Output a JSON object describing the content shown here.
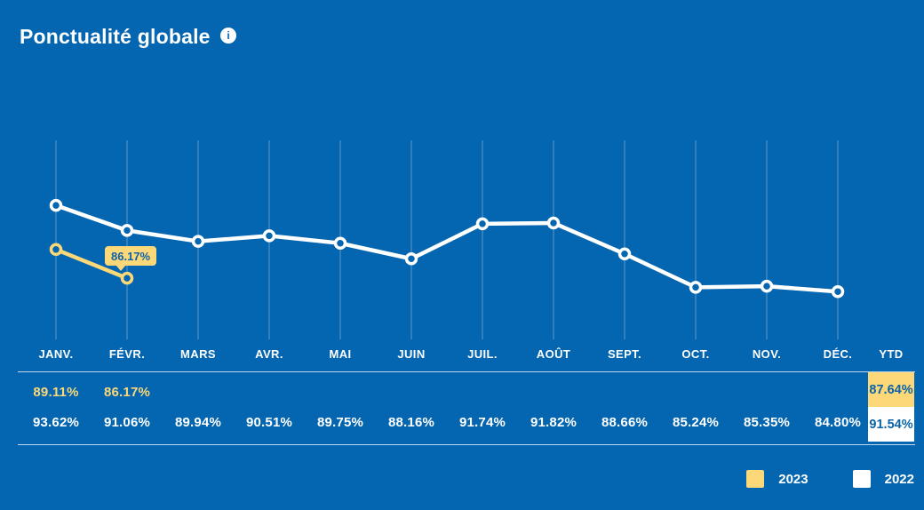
{
  "header": {
    "title": "Ponctualité globale",
    "info_icon": "i"
  },
  "colors": {
    "background": "#0466b0",
    "series_2023": "#fcd878",
    "series_2022": "#ffffff",
    "value_text_on_cell": "#0b63a8",
    "gridline": "rgba(255,255,255,0.35)",
    "separator": "rgba(255,255,255,0.75)"
  },
  "chart_data": {
    "type": "line",
    "title": "Ponctualité globale",
    "categories": [
      "JANV.",
      "FÉVR.",
      "MARS",
      "AVR.",
      "MAI",
      "JUIN",
      "JUIL.",
      "AOÛT",
      "SEPT.",
      "OCT.",
      "NOV.",
      "DÉC."
    ],
    "series": [
      {
        "name": "2022",
        "color": "#ffffff",
        "values": [
          93.62,
          91.06,
          89.94,
          90.51,
          89.75,
          88.16,
          91.74,
          91.82,
          88.66,
          85.24,
          85.35,
          84.8
        ]
      },
      {
        "name": "2023",
        "color": "#fcd878",
        "values": [
          89.11,
          86.17,
          null,
          null,
          null,
          null,
          null,
          null,
          null,
          null,
          null,
          null
        ]
      }
    ],
    "ylim": [
      84,
      95
    ],
    "grid": "vertical-only",
    "legend_position": "bottom-right",
    "tooltip": {
      "series": "2023",
      "index": 1,
      "label": "86.17%"
    }
  },
  "table": {
    "headers": [
      "JANV.",
      "FÉVR.",
      "MARS",
      "AVR.",
      "MAI",
      "JUIN",
      "JUIL.",
      "AOÛT",
      "SEPT.",
      "OCT.",
      "NOV.",
      "DÉC.",
      "YTD"
    ],
    "rows": [
      {
        "name": "2023",
        "values": [
          "89.11%",
          "86.17%",
          "",
          "",
          "",
          "",
          "",
          "",
          "",
          "",
          "",
          ""
        ],
        "ytd": "87.64%",
        "ytd_bg": "#fcd878"
      },
      {
        "name": "2022",
        "values": [
          "93.62%",
          "91.06%",
          "89.94%",
          "90.51%",
          "89.75%",
          "88.16%",
          "91.74%",
          "91.82%",
          "88.66%",
          "85.24%",
          "85.35%",
          "84.80%"
        ],
        "ytd": "91.54%",
        "ytd_bg": "#ffffff"
      }
    ]
  },
  "legend": {
    "items": [
      {
        "label": "2023",
        "color": "#fcd878"
      },
      {
        "label": "2022",
        "color": "#ffffff"
      }
    ]
  }
}
